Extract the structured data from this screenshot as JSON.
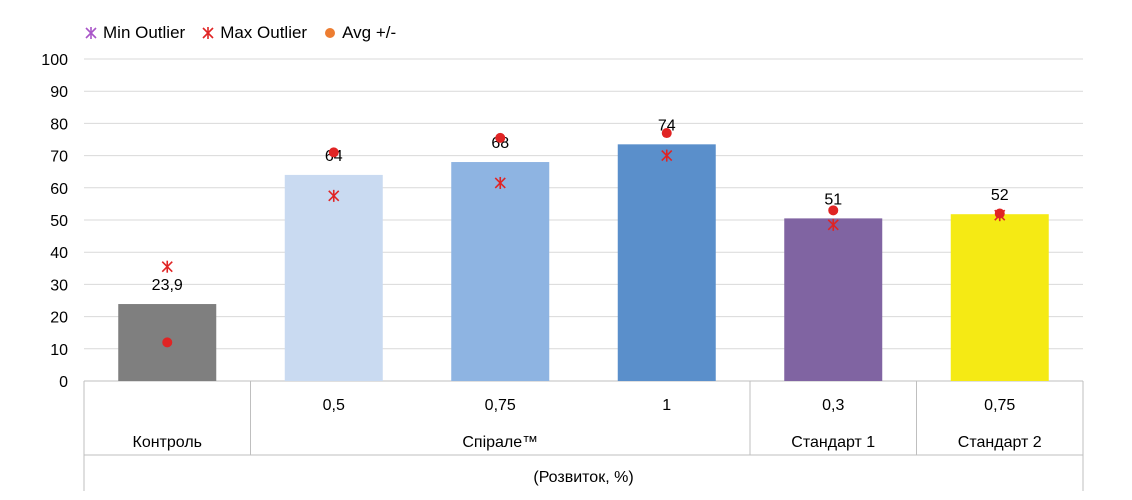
{
  "chart_data": {
    "type": "bar",
    "title": "",
    "xlabel": "(Розвиток, %)",
    "ylabel": "",
    "ylim": [
      0,
      100
    ],
    "yticks": [
      "0",
      "10",
      "20",
      "30",
      "40",
      "50",
      "60",
      "70",
      "80",
      "90",
      "100"
    ],
    "grid": true,
    "legend_position": "top-left",
    "legend": [
      {
        "label": "Min Outlier",
        "marker": "asterisk",
        "color": "#a855c8"
      },
      {
        "label": "Max Outlier",
        "marker": "asterisk",
        "color": "#e02424"
      },
      {
        "label": "Avg +/-",
        "marker": "dot",
        "color": "#ed7d31"
      }
    ],
    "groups": [
      {
        "label": "Контроль",
        "span": 1
      },
      {
        "label": "Спірале™",
        "span": 3
      },
      {
        "label": "Стандарт 1",
        "span": 1
      },
      {
        "label": "Стандарт 2",
        "span": 1
      }
    ],
    "bars": [
      {
        "category": "",
        "value": 23.9,
        "label": "23,9",
        "color": "#7f7f7f",
        "marker_asterisk": 35.5,
        "marker_dot": 12
      },
      {
        "category": "0,5",
        "value": 64,
        "label": "64",
        "color": "#c9daf1",
        "marker_asterisk": 57.5,
        "marker_dot": 71
      },
      {
        "category": "0,75",
        "value": 68,
        "label": "68",
        "color": "#8eb4e2",
        "marker_asterisk": 61.5,
        "marker_dot": 75.5
      },
      {
        "category": "1",
        "value": 73.5,
        "label": "74",
        "color": "#5a8fcb",
        "marker_asterisk": 70,
        "marker_dot": 77
      },
      {
        "category": "0,3",
        "value": 50.5,
        "label": "51",
        "color": "#8064a2",
        "marker_asterisk": 48.5,
        "marker_dot": 53
      },
      {
        "category": "0,75",
        "value": 51.8,
        "label": "52",
        "color": "#f5ea14",
        "marker_asterisk": 51.5,
        "marker_dot": 52
      }
    ],
    "marker_colors": {
      "asterisk": "#e02424",
      "dot": "#e02424"
    },
    "grid_color": "#d9d9d9",
    "axis_color": "#bfbfbf"
  }
}
